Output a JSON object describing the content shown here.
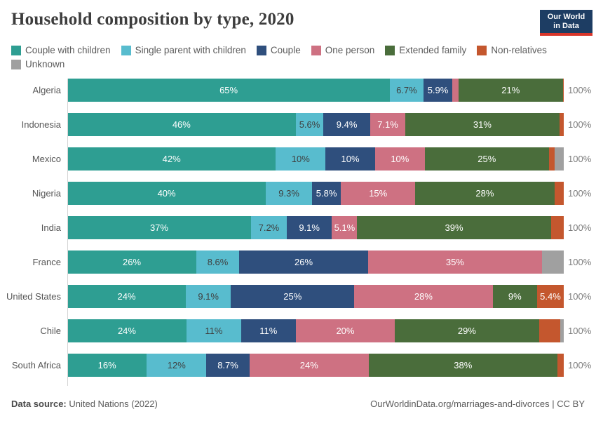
{
  "header": {
    "title": "Household composition by type, 2020",
    "logo": {
      "line1": "Our World",
      "line2": "in Data",
      "bg_color": "#1d3d63",
      "accent_color": "#d8352a"
    }
  },
  "footer": {
    "source_prefix": "Data source:",
    "source": " United Nations (2022)",
    "attribution": "OurWorldinData.org/marriages-and-divorces | CC BY"
  },
  "chart_data": {
    "type": "bar",
    "variant": "horizontal-stacked-100",
    "title": "Household composition by type, 2020",
    "categories": [
      "Algeria",
      "Indonesia",
      "Mexico",
      "Nigeria",
      "India",
      "France",
      "United States",
      "Chile",
      "South Africa"
    ],
    "total_label": "100%",
    "legend_position": "top",
    "series": [
      {
        "name": "Couple with children",
        "color": "#2e9e92",
        "text_color": "#ffffff",
        "values": [
          65,
          46,
          42,
          40,
          37,
          26,
          24,
          24,
          16
        ],
        "labels": [
          "65%",
          "46%",
          "42%",
          "40%",
          "37%",
          "26%",
          "24%",
          "24%",
          "16%"
        ]
      },
      {
        "name": "Single parent with children",
        "color": "#58bcce",
        "text_color": "#3f3f3f",
        "values": [
          6.7,
          5.6,
          10,
          9.3,
          7.2,
          8.6,
          9.1,
          11,
          12
        ],
        "labels": [
          "6.7%",
          "5.6%",
          "10%",
          "9.3%",
          "7.2%",
          "8.6%",
          "9.1%",
          "11%",
          "12%"
        ]
      },
      {
        "name": "Couple",
        "color": "#2f4f7d",
        "text_color": "#ffffff",
        "values": [
          5.9,
          9.4,
          10,
          5.8,
          9.1,
          26,
          25,
          11,
          8.7
        ],
        "labels": [
          "5.9%",
          "9.4%",
          "10%",
          "5.8%",
          "9.1%",
          "26%",
          "25%",
          "11%",
          "8.7%"
        ]
      },
      {
        "name": "One person",
        "color": "#ce7182",
        "text_color": "#ffffff",
        "values": [
          1.2,
          7.1,
          10,
          15,
          5.1,
          35,
          28,
          20,
          24
        ],
        "labels": [
          "",
          "7.1%",
          "10%",
          "15%",
          "5.1%",
          "35%",
          "28%",
          "20%",
          "24%"
        ]
      },
      {
        "name": "Extended family",
        "color": "#4a6d3b",
        "text_color": "#ffffff",
        "values": [
          21,
          31,
          25,
          28,
          39,
          0,
          9,
          29,
          38
        ],
        "labels": [
          "21%",
          "31%",
          "25%",
          "28%",
          "39%",
          "",
          "9%",
          "29%",
          "38%"
        ]
      },
      {
        "name": "Non-relatives",
        "color": "#c4572e",
        "text_color": "#ffffff",
        "values": [
          0.2,
          0.9,
          1.1,
          1.9,
          2.6,
          0,
          5.4,
          4.3,
          1.3
        ],
        "labels": [
          "",
          "",
          "",
          "",
          "",
          "",
          "5.4%",
          "",
          ""
        ]
      },
      {
        "name": "Unknown",
        "color": "#a0a0a0",
        "text_color": "#ffffff",
        "values": [
          0,
          0,
          1.9,
          0,
          0,
          4.4,
          0,
          0.7,
          0
        ],
        "labels": [
          "",
          "",
          "",
          "",
          "",
          "",
          "",
          "",
          ""
        ]
      }
    ]
  }
}
